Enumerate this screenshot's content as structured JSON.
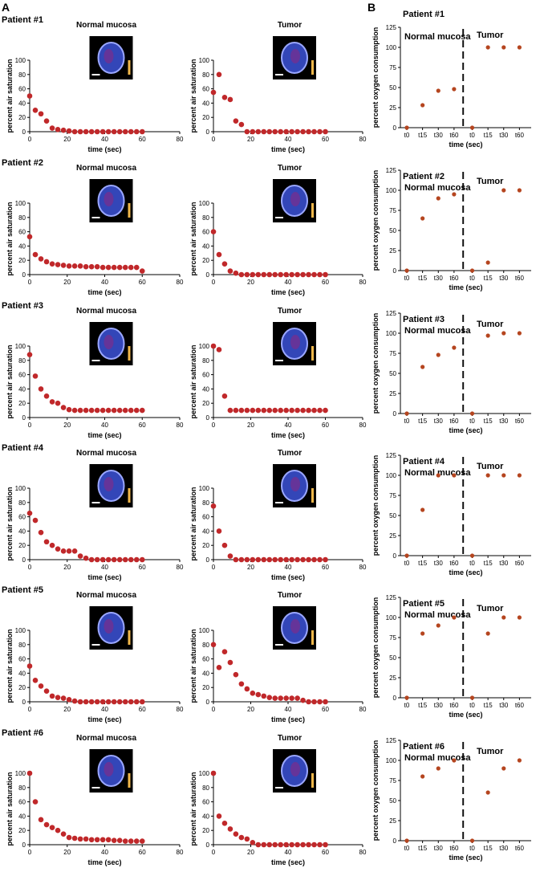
{
  "panels": {
    "a": "A",
    "b": "B"
  },
  "colors": {
    "marker": "#c0282a",
    "marker_b": "#b5451f",
    "axis": "#000000",
    "inset_bg": "#000000"
  },
  "common": {
    "a_xlabel": "time (sec)",
    "a_ylabel": "percent air saturation",
    "b_xlabel": "time (sec)",
    "b_ylabel": "percent oxygen consumption",
    "normal": "Normal mucosa",
    "tumor": "Tumor"
  },
  "chart_data": [
    {
      "patient": "Patient #1",
      "type": "scatter",
      "title": "Normal mucosa",
      "xlabel": "time (sec)",
      "ylabel": "percent air saturation",
      "xlim": [
        0,
        80
      ],
      "ylim": [
        0,
        100
      ],
      "xticks": [
        0,
        20,
        40,
        60,
        80
      ],
      "yticks": [
        0,
        20,
        40,
        60,
        80,
        100
      ],
      "x": [
        0,
        3,
        6,
        9,
        12,
        15,
        18,
        21,
        24,
        27,
        30,
        33,
        36,
        39,
        42,
        45,
        48,
        51,
        54,
        57,
        60
      ],
      "y": [
        50,
        30,
        25,
        15,
        5,
        3,
        2,
        1,
        0,
        0,
        0,
        0,
        0,
        0,
        0,
        0,
        0,
        0,
        0,
        0,
        0
      ]
    },
    {
      "patient": "Patient #1",
      "type": "scatter",
      "title": "Tumor",
      "xlabel": "time (sec)",
      "ylabel": "percent air saturation",
      "xlim": [
        0,
        80
      ],
      "ylim": [
        0,
        100
      ],
      "xticks": [
        0,
        20,
        40,
        60,
        80
      ],
      "yticks": [
        0,
        20,
        40,
        60,
        80,
        100
      ],
      "x": [
        0,
        3,
        6,
        9,
        12,
        15,
        18,
        21,
        24,
        27,
        30,
        33,
        36,
        39,
        42,
        45,
        48,
        51,
        54,
        57,
        60
      ],
      "y": [
        55,
        80,
        48,
        45,
        15,
        10,
        0,
        0,
        0,
        0,
        0,
        0,
        0,
        0,
        0,
        0,
        0,
        0,
        0,
        0,
        0
      ]
    },
    {
      "patient": "Patient #1",
      "type": "scatter",
      "xlabel": "time (sec)",
      "ylabel": "percent oxygen consumption",
      "ylim": [
        0,
        125
      ],
      "yticks": [
        0,
        25,
        50,
        75,
        100,
        125
      ],
      "categories": [
        "t0",
        "t15",
        "t30",
        "t60",
        "t0",
        "t15",
        "t30",
        "t60"
      ],
      "group_labels": [
        "Normal mucosa",
        "Tumor"
      ],
      "values": [
        0,
        28,
        46,
        48,
        0,
        100,
        100,
        100
      ]
    },
    {
      "patient": "Patient #2",
      "type": "scatter",
      "title": "Normal mucosa",
      "xlabel": "time (sec)",
      "ylabel": "percent air saturation",
      "xlim": [
        0,
        80
      ],
      "ylim": [
        0,
        100
      ],
      "xticks": [
        0,
        20,
        40,
        60,
        80
      ],
      "yticks": [
        0,
        20,
        40,
        60,
        80,
        100
      ],
      "x": [
        0,
        3,
        6,
        9,
        12,
        15,
        18,
        21,
        24,
        27,
        30,
        33,
        36,
        39,
        42,
        45,
        48,
        51,
        54,
        57,
        60
      ],
      "y": [
        53,
        28,
        22,
        18,
        15,
        14,
        13,
        12,
        12,
        12,
        11,
        11,
        11,
        10,
        10,
        10,
        10,
        10,
        10,
        10,
        5
      ]
    },
    {
      "patient": "Patient #2",
      "type": "scatter",
      "title": "Tumor",
      "xlabel": "time (sec)",
      "ylabel": "percent air saturation",
      "xlim": [
        0,
        80
      ],
      "ylim": [
        0,
        100
      ],
      "xticks": [
        0,
        20,
        40,
        60,
        80
      ],
      "yticks": [
        0,
        20,
        40,
        60,
        80,
        100
      ],
      "x": [
        0,
        3,
        6,
        9,
        12,
        15,
        18,
        21,
        24,
        27,
        30,
        33,
        36,
        39,
        42,
        45,
        48,
        51,
        54,
        57,
        60
      ],
      "y": [
        60,
        28,
        15,
        5,
        2,
        0,
        0,
        0,
        0,
        0,
        0,
        0,
        0,
        0,
        0,
        0,
        0,
        0,
        0,
        0,
        0
      ]
    },
    {
      "patient": "Patient #2",
      "type": "scatter",
      "xlabel": "time (sec)",
      "ylabel": "percent oxygen consumption",
      "ylim": [
        0,
        125
      ],
      "yticks": [
        0,
        25,
        50,
        75,
        100,
        125
      ],
      "categories": [
        "t0",
        "t15",
        "t30",
        "t60",
        "t0",
        "t15",
        "t30",
        "t60"
      ],
      "group_labels": [
        "Normal mucosa",
        "Tumor"
      ],
      "values": [
        0,
        65,
        90,
        95,
        0,
        10,
        100,
        100
      ]
    },
    {
      "patient": "Patient #3",
      "type": "scatter",
      "title": "Normal mucosa",
      "xlabel": "time (sec)",
      "ylabel": "percent air saturation",
      "xlim": [
        0,
        80
      ],
      "ylim": [
        0,
        100
      ],
      "xticks": [
        0,
        20,
        40,
        60,
        80
      ],
      "yticks": [
        0,
        20,
        40,
        60,
        80,
        100
      ],
      "x": [
        0,
        3,
        6,
        9,
        12,
        15,
        18,
        21,
        24,
        27,
        30,
        33,
        36,
        39,
        42,
        45,
        48,
        51,
        54,
        57,
        60
      ],
      "y": [
        88,
        58,
        40,
        30,
        22,
        20,
        14,
        11,
        10,
        10,
        10,
        10,
        10,
        10,
        10,
        10,
        10,
        10,
        10,
        10,
        10
      ]
    },
    {
      "patient": "Patient #3",
      "type": "scatter",
      "title": "Tumor",
      "xlabel": "time (sec)",
      "ylabel": "percent air saturation",
      "xlim": [
        0,
        80
      ],
      "ylim": [
        0,
        100
      ],
      "xticks": [
        0,
        20,
        40,
        60,
        80
      ],
      "yticks": [
        0,
        20,
        40,
        60,
        80,
        100
      ],
      "x": [
        0,
        3,
        6,
        9,
        12,
        15,
        18,
        21,
        24,
        27,
        30,
        33,
        36,
        39,
        42,
        45,
        48,
        51,
        54,
        57,
        60
      ],
      "y": [
        100,
        95,
        30,
        10,
        10,
        10,
        10,
        10,
        10,
        10,
        10,
        10,
        10,
        10,
        10,
        10,
        10,
        10,
        10,
        10,
        10
      ]
    },
    {
      "patient": "Patient #3",
      "type": "scatter",
      "xlabel": "time (sec)",
      "ylabel": "percent oxygen consumption",
      "ylim": [
        0,
        125
      ],
      "yticks": [
        0,
        25,
        50,
        75,
        100,
        125
      ],
      "categories": [
        "t0",
        "t15",
        "t30",
        "t60",
        "t0",
        "t15",
        "t30",
        "t60"
      ],
      "group_labels": [
        "Normal mucosa",
        "Tumor"
      ],
      "values": [
        0,
        58,
        73,
        82,
        0,
        97,
        100,
        100
      ]
    },
    {
      "patient": "Patient #4",
      "type": "scatter",
      "title": "Normal mucosa",
      "xlabel": "time (sec)",
      "ylabel": "percent air saturation",
      "xlim": [
        0,
        80
      ],
      "ylim": [
        0,
        100
      ],
      "xticks": [
        0,
        20,
        40,
        60,
        80
      ],
      "yticks": [
        0,
        20,
        40,
        60,
        80,
        100
      ],
      "x": [
        0,
        3,
        6,
        9,
        12,
        15,
        18,
        21,
        24,
        27,
        30,
        33,
        36,
        39,
        42,
        45,
        48,
        51,
        54,
        57,
        60
      ],
      "y": [
        65,
        55,
        38,
        25,
        20,
        15,
        12,
        12,
        12,
        5,
        2,
        0,
        0,
        0,
        0,
        0,
        0,
        0,
        0,
        0,
        0
      ]
    },
    {
      "patient": "Patient #4",
      "type": "scatter",
      "title": "Tumor",
      "xlabel": "time (sec)",
      "ylabel": "percent air saturation",
      "xlim": [
        0,
        80
      ],
      "ylim": [
        0,
        100
      ],
      "xticks": [
        0,
        20,
        40,
        60,
        80
      ],
      "yticks": [
        0,
        20,
        40,
        60,
        80,
        100
      ],
      "x": [
        0,
        3,
        6,
        9,
        12,
        15,
        18,
        21,
        24,
        27,
        30,
        33,
        36,
        39,
        42,
        45,
        48,
        51,
        54,
        57,
        60
      ],
      "y": [
        75,
        40,
        20,
        5,
        0,
        0,
        0,
        0,
        0,
        0,
        0,
        0,
        0,
        0,
        0,
        0,
        0,
        0,
        0,
        0,
        0
      ]
    },
    {
      "patient": "Patient #4",
      "type": "scatter",
      "xlabel": "time (sec)",
      "ylabel": "percent oxygen consumption",
      "ylim": [
        0,
        125
      ],
      "yticks": [
        0,
        25,
        50,
        75,
        100,
        125
      ],
      "categories": [
        "t0",
        "t15",
        "t30",
        "t60",
        "t0",
        "t15",
        "t30",
        "t60"
      ],
      "group_labels": [
        "Normal mucosa",
        "Tumor"
      ],
      "values": [
        0,
        57,
        100,
        100,
        0,
        100,
        100,
        100
      ]
    },
    {
      "patient": "Patient #5",
      "type": "scatter",
      "title": "Normal mucosa",
      "xlabel": "time (sec)",
      "ylabel": "percent air saturation",
      "xlim": [
        0,
        80
      ],
      "ylim": [
        0,
        100
      ],
      "xticks": [
        0,
        20,
        40,
        60,
        80
      ],
      "yticks": [
        0,
        20,
        40,
        60,
        80,
        100
      ],
      "x": [
        0,
        3,
        6,
        9,
        12,
        15,
        18,
        21,
        24,
        27,
        30,
        33,
        36,
        39,
        42,
        45,
        48,
        51,
        54,
        57,
        60
      ],
      "y": [
        50,
        30,
        22,
        15,
        8,
        6,
        5,
        3,
        1,
        0,
        0,
        0,
        0,
        0,
        0,
        0,
        0,
        0,
        0,
        0,
        0
      ]
    },
    {
      "patient": "Patient #5",
      "type": "scatter",
      "title": "Tumor",
      "xlabel": "time (sec)",
      "ylabel": "percent air saturation",
      "xlim": [
        0,
        80
      ],
      "ylim": [
        0,
        100
      ],
      "xticks": [
        0,
        20,
        40,
        60,
        80
      ],
      "yticks": [
        0,
        20,
        40,
        60,
        80,
        100
      ],
      "x": [
        0,
        3,
        6,
        9,
        12,
        15,
        18,
        21,
        24,
        27,
        30,
        33,
        36,
        39,
        42,
        45,
        48,
        51,
        54,
        57,
        60
      ],
      "y": [
        80,
        48,
        70,
        55,
        38,
        25,
        18,
        12,
        10,
        8,
        6,
        5,
        5,
        5,
        5,
        5,
        2,
        0,
        0,
        0,
        0
      ]
    },
    {
      "patient": "Patient #5",
      "type": "scatter",
      "xlabel": "time (sec)",
      "ylabel": "percent oxygen consumption",
      "ylim": [
        0,
        125
      ],
      "yticks": [
        0,
        25,
        50,
        75,
        100,
        125
      ],
      "categories": [
        "t0",
        "t15",
        "t30",
        "t60",
        "t0",
        "t15",
        "t30",
        "t60"
      ],
      "group_labels": [
        "Normal mucosa",
        "Tumor"
      ],
      "values": [
        0,
        80,
        90,
        100,
        0,
        80,
        100,
        100
      ]
    },
    {
      "patient": "Patient #6",
      "type": "scatter",
      "title": "Normal mucosa",
      "xlabel": "time (sec)",
      "ylabel": "percent air saturation",
      "xlim": [
        0,
        80
      ],
      "ylim": [
        0,
        100
      ],
      "xticks": [
        0,
        20,
        40,
        60,
        80
      ],
      "yticks": [
        0,
        20,
        40,
        60,
        80,
        100
      ],
      "x": [
        0,
        3,
        6,
        9,
        12,
        15,
        18,
        21,
        24,
        27,
        30,
        33,
        36,
        39,
        42,
        45,
        48,
        51,
        54,
        57,
        60
      ],
      "y": [
        100,
        60,
        35,
        28,
        24,
        20,
        15,
        10,
        9,
        8,
        8,
        7,
        7,
        7,
        7,
        6,
        6,
        5,
        5,
        5,
        5
      ]
    },
    {
      "patient": "Patient #6",
      "type": "scatter",
      "title": "Tumor",
      "xlabel": "time (sec)",
      "ylabel": "percent air saturation",
      "xlim": [
        0,
        80
      ],
      "ylim": [
        0,
        100
      ],
      "xticks": [
        0,
        20,
        40,
        60,
        80
      ],
      "yticks": [
        0,
        20,
        40,
        60,
        80,
        100
      ],
      "x": [
        0,
        3,
        6,
        9,
        12,
        15,
        18,
        21,
        24,
        27,
        30,
        33,
        36,
        39,
        42,
        45,
        48,
        51,
        54,
        57,
        60
      ],
      "y": [
        100,
        40,
        30,
        22,
        15,
        10,
        8,
        3,
        0,
        0,
        0,
        0,
        0,
        0,
        0,
        0,
        0,
        0,
        0,
        0,
        0
      ]
    },
    {
      "patient": "Patient #6",
      "type": "scatter",
      "xlabel": "time (sec)",
      "ylabel": "percent oxygen consumption",
      "ylim": [
        0,
        125
      ],
      "yticks": [
        0,
        25,
        50,
        75,
        100,
        125
      ],
      "categories": [
        "t0",
        "t15",
        "t30",
        "t60",
        "t0",
        "t15",
        "t30",
        "t60"
      ],
      "group_labels": [
        "Normal mucosa",
        "Tumor"
      ],
      "values": [
        0,
        80,
        90,
        100,
        0,
        60,
        90,
        100
      ]
    }
  ]
}
